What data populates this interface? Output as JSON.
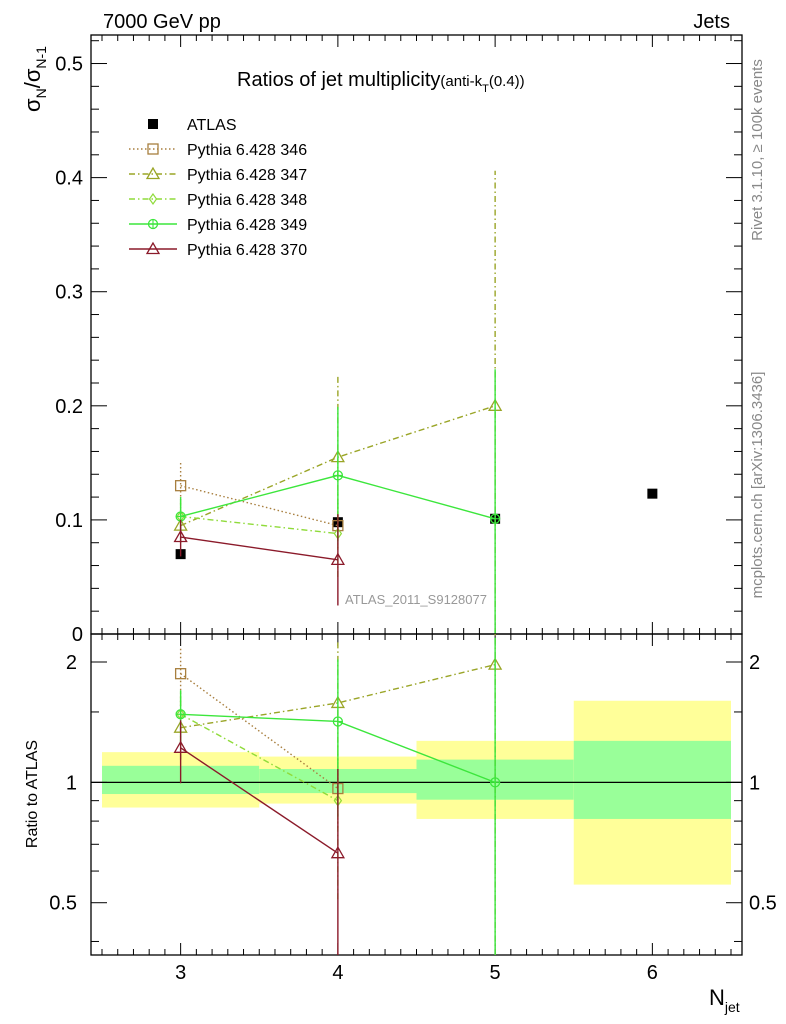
{
  "header": {
    "left": "7000 GeV pp",
    "right": "Jets"
  },
  "side_text": {
    "upper": "Rivet 3.1.10, ≥ 100k events",
    "lower": "mcplots.cern.ch [arXiv:1306.3436]"
  },
  "watermark": "ATLAS_2011_S9128077",
  "chart_data": [
    {
      "type": "scatter",
      "panel": "main",
      "title": "Ratios of jet multiplicity",
      "title_suffix": "(anti-k",
      "title_sub": "T",
      "title_end": "(0.4))",
      "ylabel": "σN/σN-1",
      "ylim": [
        0,
        0.525
      ],
      "yticks": [
        0,
        0.1,
        0.2,
        0.3,
        0.4,
        0.5
      ],
      "ytick_labels": [
        "0",
        "0.1",
        "0.2",
        "0.3",
        "0.4",
        "0.5"
      ],
      "xlim": [
        2.43,
        6.57
      ],
      "series": [
        {
          "name": "ATLAS",
          "color": "#000000",
          "marker": "filled-square",
          "line": "none",
          "x": [
            3,
            4,
            5,
            6
          ],
          "y": [
            0.07,
            0.098,
            0.101,
            0.123
          ]
        },
        {
          "name": "Pythia 6.428 346",
          "color": "#a87f3f",
          "marker": "open-square",
          "line": "dotted",
          "x": [
            3,
            4
          ],
          "y": [
            0.13,
            0.095
          ],
          "ylo": [
            0.11,
            0.075
          ],
          "yhi": [
            0.152,
            0.115
          ]
        },
        {
          "name": "Pythia 6.428 347",
          "color": "#9aa527",
          "marker": "open-triangle",
          "line": "dashdot",
          "x": [
            3,
            4,
            5
          ],
          "y": [
            0.095,
            0.155,
            0.2
          ],
          "ylo": [
            0.08,
            0.09,
            0.0
          ],
          "yhi": [
            0.11,
            0.226,
            0.406
          ]
        },
        {
          "name": "Pythia 6.428 348",
          "color": "#8fdb3a",
          "marker": "open-diamond",
          "line": "dashdot",
          "x": [
            3,
            4
          ],
          "y": [
            0.103,
            0.088
          ],
          "ylo": [
            0.088,
            0.05
          ],
          "yhi": [
            0.12,
            0.125
          ]
        },
        {
          "name": "Pythia 6.428 349",
          "color": "#3ce63c",
          "marker": "open-circle-cross",
          "line": "solid",
          "x": [
            3,
            4,
            5
          ],
          "y": [
            0.103,
            0.139,
            0.101
          ],
          "ylo": [
            0.088,
            0.08,
            0.0
          ],
          "yhi": [
            0.12,
            0.199,
            0.232
          ]
        },
        {
          "name": "Pythia 6.428 370",
          "color": "#8b1a2a",
          "marker": "open-triangle",
          "line": "solid",
          "x": [
            3,
            4
          ],
          "y": [
            0.085,
            0.065
          ],
          "ylo": [
            0.068,
            0.025
          ],
          "yhi": [
            0.1,
            0.105
          ]
        }
      ]
    },
    {
      "type": "scatter",
      "panel": "ratio",
      "ylabel": "Ratio to ATLAS",
      "ylim": [
        0.37,
        2.35
      ],
      "log_y": true,
      "yticks": [
        0.5,
        1,
        2
      ],
      "ytick_labels": [
        "0.5",
        "1",
        "2"
      ],
      "xlabel": "Njet",
      "xticks": [
        3,
        4,
        5,
        6
      ],
      "xtick_labels": [
        "3",
        "4",
        "5",
        "6"
      ],
      "xlim": [
        2.43,
        6.57
      ],
      "bands": [
        {
          "x0": 2.5,
          "x1": 3.5,
          "yellow": [
            0.865,
            1.19
          ],
          "green": [
            0.935,
            1.1
          ]
        },
        {
          "x0": 3.5,
          "x1": 4.5,
          "yellow": [
            0.885,
            1.16
          ],
          "green": [
            0.94,
            1.08
          ]
        },
        {
          "x0": 4.5,
          "x1": 5.5,
          "yellow": [
            0.81,
            1.27
          ],
          "green": [
            0.905,
            1.14
          ]
        },
        {
          "x0": 5.5,
          "x1": 6.5,
          "yellow": [
            0.555,
            1.6
          ],
          "green": [
            0.81,
            1.27
          ]
        }
      ],
      "series": [
        {
          "name": "Pythia 6.428 346",
          "color": "#a87f3f",
          "marker": "open-square",
          "line": "dotted",
          "x": [
            3,
            4
          ],
          "y": [
            1.87,
            0.965
          ],
          "ylo": [
            1.55,
            0.77
          ],
          "yhi": [
            2.16,
            1.16
          ]
        },
        {
          "name": "Pythia 6.428 347",
          "color": "#9aa527",
          "marker": "open-triangle",
          "line": "dashdot",
          "x": [
            3,
            4,
            5
          ],
          "y": [
            1.37,
            1.58,
            1.97
          ],
          "ylo": [
            1.14,
            0.92,
            0.0
          ],
          "yhi": [
            1.6,
            2.27,
            4.0
          ]
        },
        {
          "name": "Pythia 6.428 348",
          "color": "#8fdb3a",
          "marker": "open-diamond",
          "line": "dashdot",
          "x": [
            3,
            4
          ],
          "y": [
            1.48,
            0.9
          ],
          "ylo": [
            1.26,
            0.51
          ],
          "yhi": [
            1.7,
            1.28
          ]
        },
        {
          "name": "Pythia 6.428 349",
          "color": "#3ce63c",
          "marker": "open-circle-cross",
          "line": "solid",
          "x": [
            3,
            4,
            5
          ],
          "y": [
            1.48,
            1.42,
            1.0
          ],
          "ylo": [
            1.26,
            0.82,
            0.0
          ],
          "yhi": [
            1.7,
            2.03,
            2.3
          ]
        },
        {
          "name": "Pythia 6.428 370",
          "color": "#8b1a2a",
          "marker": "open-triangle",
          "line": "solid",
          "x": [
            3,
            4
          ],
          "y": [
            1.22,
            0.665
          ],
          "ylo": [
            0.995,
            0.25
          ],
          "yhi": [
            1.43,
            1.08
          ]
        }
      ]
    }
  ]
}
